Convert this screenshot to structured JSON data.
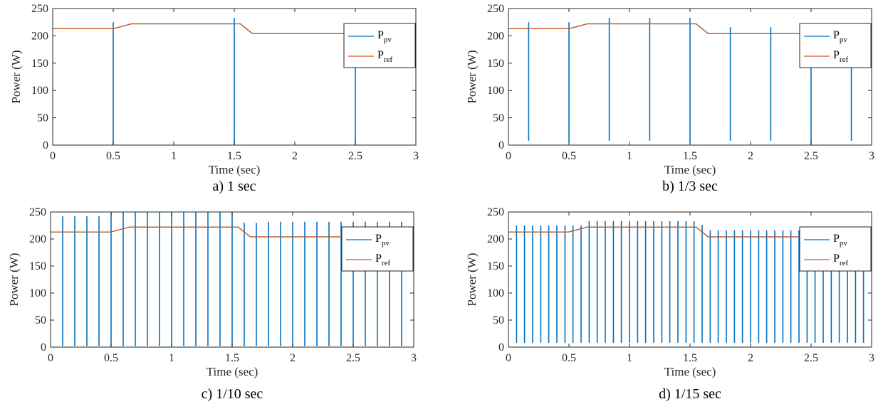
{
  "chart_data": [
    {
      "type": "line",
      "caption": "a) 1 sec",
      "xlabel": "Time (sec)",
      "ylabel": "Power (W)",
      "xlim": [
        0,
        3
      ],
      "ylim": [
        0,
        250
      ],
      "xticks": [
        0,
        0.5,
        1,
        1.5,
        2,
        2.5,
        3
      ],
      "yticks": [
        0,
        50,
        100,
        150,
        200,
        250
      ],
      "grid": false,
      "legend_position": "top-right",
      "perturbation_period_sec": 1,
      "series": [
        {
          "name": "P_pv",
          "color": "#0072BD",
          "x": [
            0,
            0.5,
            0.65,
            1.5,
            1.55,
            1.65,
            2.5,
            3
          ],
          "y": [
            213,
            213,
            222,
            222,
            222,
            204,
            204,
            204
          ],
          "spikes": [
            {
              "t": 0.5,
              "min": 0,
              "max": 225
            },
            {
              "t": 1.5,
              "min": 0,
              "max": 233
            },
            {
              "t": 2.5,
              "min": 0,
              "max": 205
            }
          ]
        },
        {
          "name": "P_ref",
          "color": "#D95319",
          "x": [
            0,
            0.5,
            0.65,
            1.5,
            1.55,
            1.65,
            3
          ],
          "y": [
            213,
            213,
            222,
            222,
            222,
            204,
            204
          ]
        }
      ]
    },
    {
      "type": "line",
      "caption": "b) 1/3 sec",
      "xlabel": "Time (sec)",
      "ylabel": "Power (W)",
      "xlim": [
        0,
        3
      ],
      "ylim": [
        0,
        250
      ],
      "xticks": [
        0,
        0.5,
        1,
        1.5,
        2,
        2.5,
        3
      ],
      "yticks": [
        0,
        50,
        100,
        150,
        200,
        250
      ],
      "grid": false,
      "legend_position": "top-right",
      "perturbation_period_sec": 0.3333,
      "series": [
        {
          "name": "P_pv",
          "color": "#0072BD",
          "x": [
            0,
            0.5,
            0.65,
            1.5,
            1.55,
            1.65,
            3
          ],
          "y": [
            213,
            213,
            222,
            222,
            222,
            204,
            204
          ],
          "spikes": [
            {
              "t": 0.167,
              "min": 8,
              "max": 225
            },
            {
              "t": 0.5,
              "min": 5,
              "max": 225
            },
            {
              "t": 0.833,
              "min": 8,
              "max": 233
            },
            {
              "t": 1.167,
              "min": 8,
              "max": 233
            },
            {
              "t": 1.5,
              "min": 5,
              "max": 233
            },
            {
              "t": 1.833,
              "min": 8,
              "max": 216
            },
            {
              "t": 2.167,
              "min": 8,
              "max": 216
            },
            {
              "t": 2.5,
              "min": 0,
              "max": 205
            },
            {
              "t": 2.833,
              "min": 8,
              "max": 205
            }
          ]
        },
        {
          "name": "P_ref",
          "color": "#D95319",
          "x": [
            0,
            0.5,
            0.65,
            1.5,
            1.55,
            1.65,
            3
          ],
          "y": [
            213,
            213,
            222,
            222,
            222,
            204,
            204
          ]
        }
      ]
    },
    {
      "type": "line",
      "caption": "c) 1/10 sec",
      "xlabel": "Time (sec)",
      "ylabel": "Power (W)",
      "xlim": [
        0,
        3
      ],
      "ylim": [
        0,
        250
      ],
      "xticks": [
        0,
        0.5,
        1,
        1.5,
        2,
        2.5,
        3
      ],
      "yticks": [
        0,
        50,
        100,
        150,
        200,
        250
      ],
      "grid": false,
      "legend_position": "top-right",
      "perturbation_period_sec": 0.1,
      "series": [
        {
          "name": "P_pv",
          "color": "#0072BD",
          "x": [
            0,
            0.5,
            0.65,
            1.5,
            1.55,
            1.65,
            3
          ],
          "y": [
            213,
            213,
            222,
            222,
            222,
            204,
            204
          ],
          "spikes": [
            {
              "t": 0.1,
              "min": 2,
              "max": 242
            },
            {
              "t": 0.2,
              "min": 2,
              "max": 242
            },
            {
              "t": 0.3,
              "min": 2,
              "max": 242
            },
            {
              "t": 0.4,
              "min": 2,
              "max": 242
            },
            {
              "t": 0.5,
              "min": 2,
              "max": 250
            },
            {
              "t": 0.6,
              "min": 2,
              "max": 250
            },
            {
              "t": 0.7,
              "min": 2,
              "max": 250
            },
            {
              "t": 0.8,
              "min": 2,
              "max": 250
            },
            {
              "t": 0.9,
              "min": 2,
              "max": 250
            },
            {
              "t": 1.0,
              "min": 2,
              "max": 250
            },
            {
              "t": 1.1,
              "min": 2,
              "max": 250
            },
            {
              "t": 1.2,
              "min": 2,
              "max": 250
            },
            {
              "t": 1.3,
              "min": 2,
              "max": 250
            },
            {
              "t": 1.4,
              "min": 2,
              "max": 250
            },
            {
              "t": 1.5,
              "min": 2,
              "max": 250
            },
            {
              "t": 1.6,
              "min": 2,
              "max": 230
            },
            {
              "t": 1.7,
              "min": 2,
              "max": 230
            },
            {
              "t": 1.8,
              "min": 2,
              "max": 232
            },
            {
              "t": 1.9,
              "min": 2,
              "max": 232
            },
            {
              "t": 2.0,
              "min": 2,
              "max": 232
            },
            {
              "t": 2.1,
              "min": 2,
              "max": 232
            },
            {
              "t": 2.2,
              "min": 2,
              "max": 232
            },
            {
              "t": 2.3,
              "min": 2,
              "max": 232
            },
            {
              "t": 2.4,
              "min": 2,
              "max": 232
            },
            {
              "t": 2.5,
              "min": 2,
              "max": 232
            },
            {
              "t": 2.6,
              "min": 2,
              "max": 232
            },
            {
              "t": 2.7,
              "min": 2,
              "max": 232
            },
            {
              "t": 2.8,
              "min": 2,
              "max": 232
            },
            {
              "t": 2.9,
              "min": 2,
              "max": 232
            }
          ]
        },
        {
          "name": "P_ref",
          "color": "#D95319",
          "x": [
            0,
            0.5,
            0.65,
            1.5,
            1.55,
            1.65,
            3
          ],
          "y": [
            213,
            213,
            222,
            222,
            222,
            204,
            204
          ]
        }
      ]
    },
    {
      "type": "line",
      "caption": "d) 1/15 sec",
      "xlabel": "Time (sec)",
      "ylabel": "Power (W)",
      "xlim": [
        0,
        3
      ],
      "ylim": [
        0,
        250
      ],
      "xticks": [
        0,
        0.5,
        1,
        1.5,
        2,
        2.5,
        3
      ],
      "yticks": [
        0,
        50,
        100,
        150,
        200,
        250
      ],
      "grid": false,
      "legend_position": "top-right",
      "perturbation_period_sec": 0.0667,
      "series": [
        {
          "name": "P_pv",
          "color": "#0072BD",
          "x": [
            0,
            0.5,
            0.65,
            1.5,
            1.55,
            1.65,
            3
          ],
          "y": [
            213,
            213,
            222,
            222,
            222,
            204,
            204
          ],
          "spikes": [
            {
              "t": 0.067,
              "min": 8,
              "max": 225
            },
            {
              "t": 0.133,
              "min": 8,
              "max": 225
            },
            {
              "t": 0.2,
              "min": 8,
              "max": 225
            },
            {
              "t": 0.267,
              "min": 8,
              "max": 225
            },
            {
              "t": 0.333,
              "min": 8,
              "max": 225
            },
            {
              "t": 0.4,
              "min": 8,
              "max": 225
            },
            {
              "t": 0.467,
              "min": 8,
              "max": 225
            },
            {
              "t": 0.533,
              "min": 8,
              "max": 225
            },
            {
              "t": 0.6,
              "min": 8,
              "max": 225
            },
            {
              "t": 0.667,
              "min": 8,
              "max": 233
            },
            {
              "t": 0.733,
              "min": 8,
              "max": 233
            },
            {
              "t": 0.8,
              "min": 8,
              "max": 233
            },
            {
              "t": 0.867,
              "min": 8,
              "max": 233
            },
            {
              "t": 0.933,
              "min": 8,
              "max": 233
            },
            {
              "t": 1.0,
              "min": 8,
              "max": 233
            },
            {
              "t": 1.067,
              "min": 8,
              "max": 233
            },
            {
              "t": 1.133,
              "min": 8,
              "max": 233
            },
            {
              "t": 1.2,
              "min": 8,
              "max": 233
            },
            {
              "t": 1.267,
              "min": 8,
              "max": 233
            },
            {
              "t": 1.333,
              "min": 8,
              "max": 233
            },
            {
              "t": 1.4,
              "min": 8,
              "max": 233
            },
            {
              "t": 1.467,
              "min": 8,
              "max": 233
            },
            {
              "t": 1.533,
              "min": 8,
              "max": 233
            },
            {
              "t": 1.6,
              "min": 8,
              "max": 226
            },
            {
              "t": 1.667,
              "min": 8,
              "max": 216
            },
            {
              "t": 1.733,
              "min": 8,
              "max": 216
            },
            {
              "t": 1.8,
              "min": 8,
              "max": 216
            },
            {
              "t": 1.867,
              "min": 8,
              "max": 216
            },
            {
              "t": 1.933,
              "min": 8,
              "max": 216
            },
            {
              "t": 2.0,
              "min": 8,
              "max": 216
            },
            {
              "t": 2.067,
              "min": 8,
              "max": 216
            },
            {
              "t": 2.133,
              "min": 8,
              "max": 216
            },
            {
              "t": 2.2,
              "min": 8,
              "max": 216
            },
            {
              "t": 2.267,
              "min": 8,
              "max": 216
            },
            {
              "t": 2.333,
              "min": 8,
              "max": 216
            },
            {
              "t": 2.4,
              "min": 8,
              "max": 216
            },
            {
              "t": 2.467,
              "min": 8,
              "max": 216
            },
            {
              "t": 2.533,
              "min": 8,
              "max": 216
            },
            {
              "t": 2.6,
              "min": 8,
              "max": 216
            },
            {
              "t": 2.667,
              "min": 8,
              "max": 216
            },
            {
              "t": 2.733,
              "min": 8,
              "max": 216
            },
            {
              "t": 2.8,
              "min": 8,
              "max": 216
            },
            {
              "t": 2.867,
              "min": 8,
              "max": 216
            },
            {
              "t": 2.933,
              "min": 8,
              "max": 216
            }
          ]
        },
        {
          "name": "P_ref",
          "color": "#D95319",
          "x": [
            0,
            0.5,
            0.65,
            1.5,
            1.55,
            1.65,
            3
          ],
          "y": [
            213,
            213,
            222,
            222,
            222,
            204,
            204
          ]
        }
      ]
    }
  ]
}
